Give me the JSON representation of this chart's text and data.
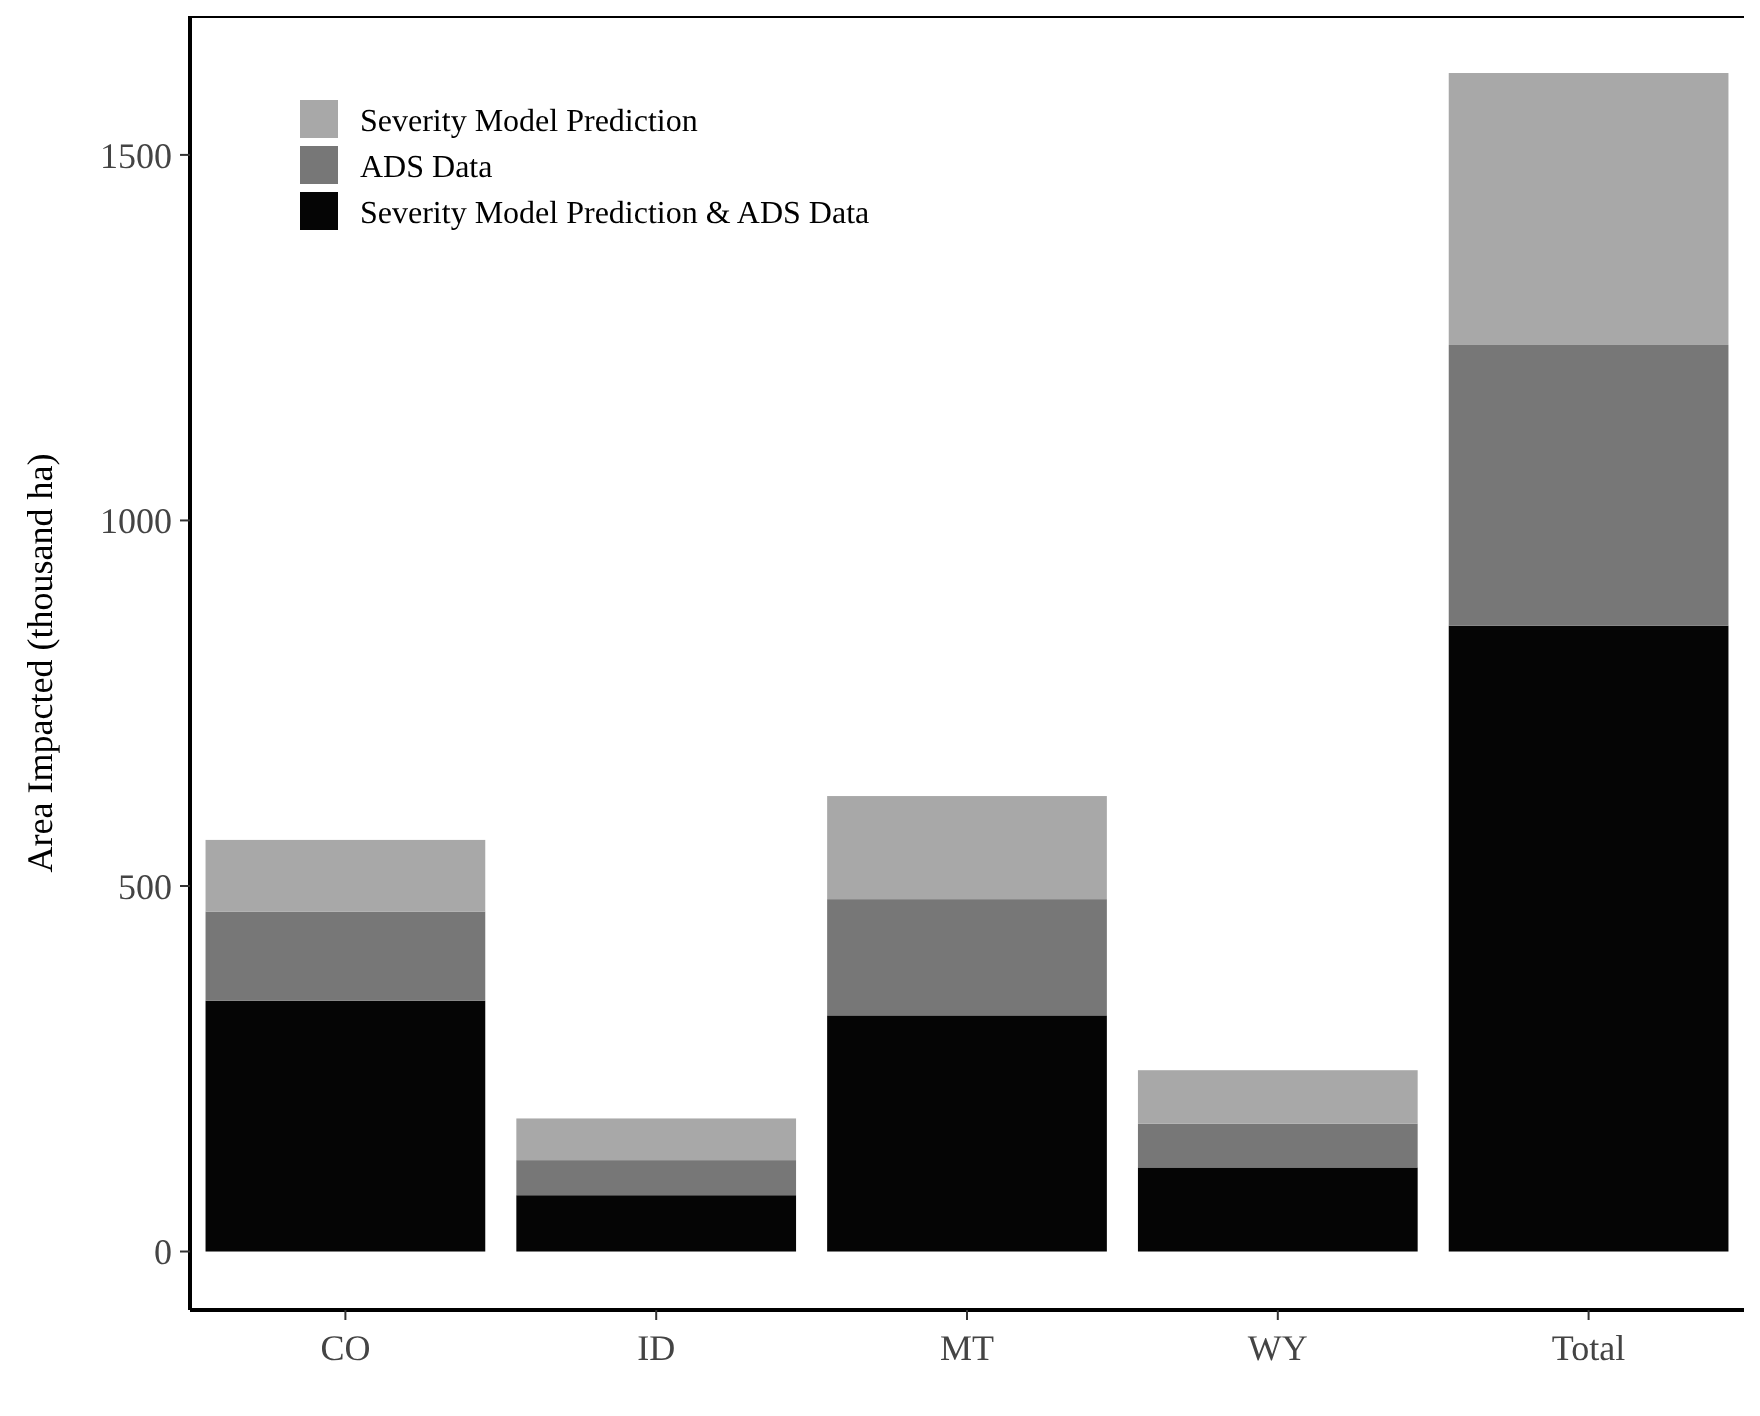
{
  "chart_data": {
    "type": "bar",
    "stacked": true,
    "ylabel": "Area Impacted (thousand ha)",
    "categories": [
      "CO",
      "ID",
      "MT",
      "WY",
      "Total"
    ],
    "series": [
      {
        "name": "Severity Model Prediction & ADS Data",
        "color": "#050505",
        "values": [
          343,
          77,
          323,
          115,
          856
        ]
      },
      {
        "name": "ADS Data",
        "color": "#777777",
        "values": [
          122,
          48,
          159,
          60,
          384
        ]
      },
      {
        "name": "Severity Model Prediction",
        "color": "#a8a8a8",
        "values": [
          98,
          57,
          141,
          73,
          372
        ]
      }
    ],
    "ylim": [
      -80,
      1690
    ],
    "yticks": [
      0,
      500,
      1000,
      1500
    ],
    "grid": false,
    "legend": "top left"
  }
}
